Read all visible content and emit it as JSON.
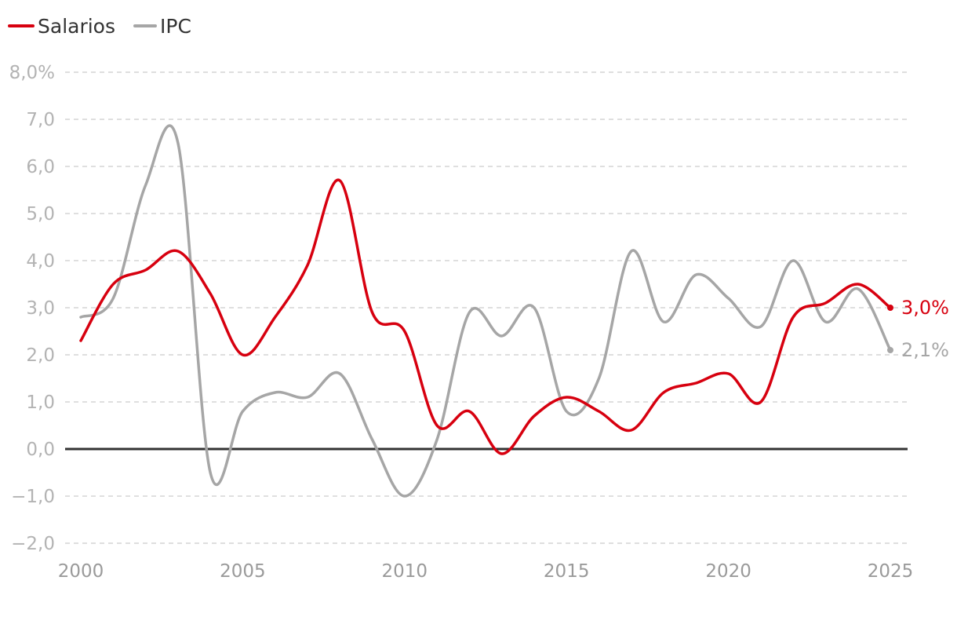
{
  "chart_data": {
    "type": "line",
    "x": [
      2000,
      2001,
      2002,
      2003,
      2004,
      2005,
      2006,
      2007,
      2008,
      2009,
      2010,
      2011,
      2012,
      2013,
      2014,
      2015,
      2016,
      2017,
      2018,
      2019,
      2020,
      2021,
      2022,
      2023,
      2024,
      2025
    ],
    "series": [
      {
        "name": "Salarios",
        "color": "#d7000f",
        "values": [
          2.3,
          3.5,
          3.8,
          4.2,
          3.3,
          2.0,
          2.8,
          3.9,
          5.7,
          2.9,
          2.5,
          0.5,
          0.8,
          -0.1,
          0.7,
          1.1,
          0.8,
          0.4,
          1.2,
          1.4,
          1.6,
          1.0,
          2.8,
          3.1,
          3.5,
          3.0
        ]
      },
      {
        "name": "IPC",
        "color": "#a6a6a6",
        "values": [
          2.8,
          3.2,
          5.6,
          6.5,
          -0.5,
          0.8,
          1.2,
          1.1,
          1.6,
          0.2,
          -1.0,
          0.2,
          2.9,
          2.4,
          3.0,
          0.8,
          1.5,
          4.2,
          2.7,
          3.7,
          3.2,
          2.6,
          4.0,
          2.7,
          3.4,
          2.1
        ]
      }
    ],
    "ylim": [
      -2.0,
      8.0
    ],
    "yticks": [
      -2,
      -1,
      0,
      1,
      2,
      3,
      4,
      5,
      6,
      7,
      8
    ],
    "ytick_labels": [
      "−2,0",
      "−1,0",
      "0,0",
      "1,0",
      "2,0",
      "3,0",
      "4,0",
      "5,0",
      "6,0",
      "7,0",
      "8,0%"
    ],
    "xticks": [
      2000,
      2005,
      2010,
      2015,
      2020,
      2025
    ],
    "xtick_labels": [
      "2000",
      "2005",
      "2010",
      "2015",
      "2020",
      "2025"
    ],
    "end_labels": [
      "3,0%",
      "2,1%"
    ],
    "legend_position": "top-left",
    "grid": true
  }
}
